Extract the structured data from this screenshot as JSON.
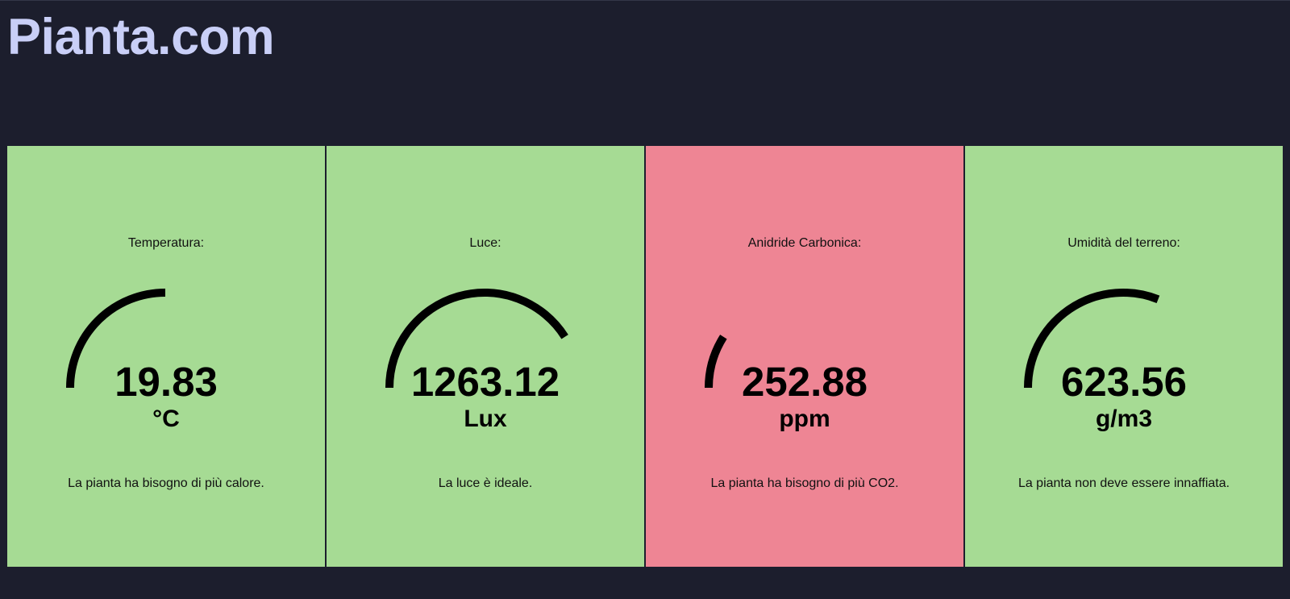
{
  "site": {
    "title": "Pianta.com"
  },
  "cards": [
    {
      "label": "Temperatura:",
      "value": "19.83",
      "unit": "°C",
      "message": "La pianta ha bisogno di più calore.",
      "gauge_fraction": 0.5,
      "bg": "#a6db94"
    },
    {
      "label": "Luce:",
      "value": "1263.12",
      "unit": "Lux",
      "message": "La luce è ideale.",
      "gauge_fraction": 0.82,
      "bg": "#a6db94"
    },
    {
      "label": "Anidride Carbonica:",
      "value": "252.88",
      "unit": "ppm",
      "message": "La pianta ha bisogno di più CO2.",
      "gauge_fraction": 0.18,
      "bg": "#ee8594"
    },
    {
      "label": "Umidità del terreno:",
      "value": "623.56",
      "unit": "g/m3",
      "message": "La pianta non deve essere innaffiata.",
      "gauge_fraction": 0.62,
      "bg": "#a6db94"
    }
  ]
}
